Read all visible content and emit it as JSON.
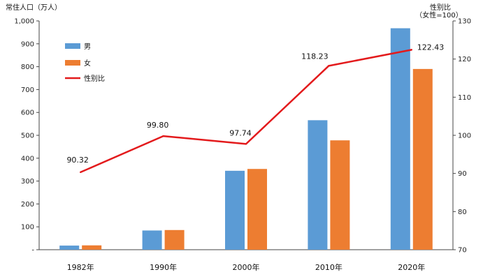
{
  "chart_data": {
    "type": "bar",
    "categories": [
      "1982年",
      "1990年",
      "2000年",
      "2010年",
      "2020年"
    ],
    "series": [
      {
        "name": "男",
        "kind": "bar",
        "axis": "left",
        "values": [
          18,
          84,
          345,
          566,
          968
        ],
        "color": "#5B9BD5"
      },
      {
        "name": "女",
        "kind": "bar",
        "axis": "left",
        "values": [
          19,
          86,
          353,
          478,
          790
        ],
        "color": "#ED7D31"
      },
      {
        "name": "性别比",
        "kind": "line",
        "axis": "right",
        "values": [
          90.32,
          99.8,
          97.74,
          118.23,
          122.43
        ],
        "color": "#E31A1C",
        "labels": [
          "90.32",
          "99.80",
          "97.74",
          "118.23",
          "122.43"
        ]
      }
    ],
    "ylabel_left": "常住人口（万人）",
    "ylabel_right_line1": "性别比",
    "ylabel_right_line2": "（女性=100）",
    "ylim_left": [
      0,
      1000
    ],
    "ylim_right": [
      70,
      130
    ],
    "yticks_left": [
      "-",
      "100",
      "200",
      "300",
      "400",
      "500",
      "600",
      "700",
      "800",
      "900",
      "1,000"
    ],
    "yticks_right": [
      "70",
      "80",
      "90",
      "100",
      "110",
      "120",
      "130"
    ],
    "legend": [
      "男",
      "女",
      "性别比"
    ],
    "legend_position": "top-left",
    "grid": false
  }
}
